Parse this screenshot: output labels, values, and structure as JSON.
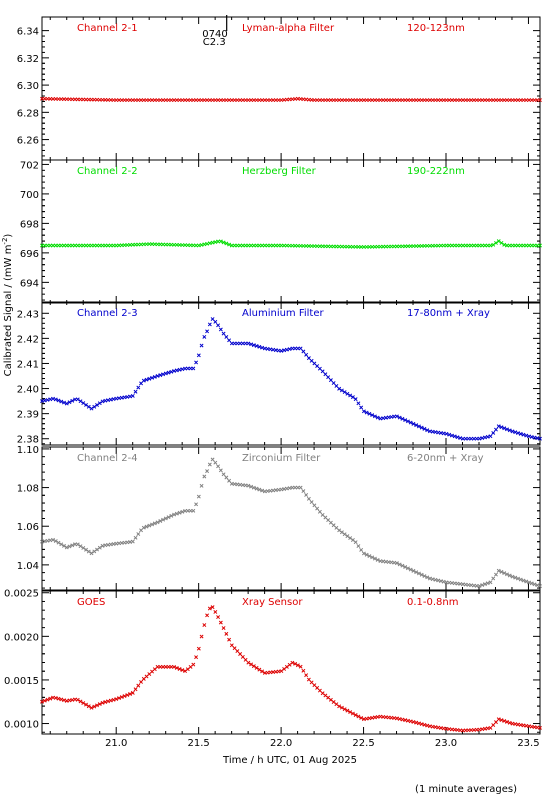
{
  "chart_data": {
    "type": "scatter",
    "ylabel": "Calibrated Signal / (mW m",
    "ylabel_sup": "-2",
    "ylabel_end": ")",
    "xlabel": "Time / h UTC, 01 Aug 2025",
    "footnote": "(1 minute averages)",
    "event_marker": {
      "x": 21.67,
      "label_top": "0740",
      "label_bottom": "C2.3"
    },
    "x_axis": {
      "range": [
        20.55,
        23.57
      ],
      "ticks": [
        21.0,
        21.5,
        22.0,
        22.5,
        23.0,
        23.5
      ],
      "tick_labels": [
        "21.0",
        "21.5",
        "22.0",
        "22.5",
        "23.0",
        "23.5"
      ]
    },
    "panels": [
      {
        "channel": "Channel 2-1",
        "filter": "Lyman-alpha Filter",
        "band": "120-123nm",
        "color": "#dd0000",
        "ylim": [
          6.245,
          6.35
        ],
        "yticks": [
          6.26,
          6.28,
          6.3,
          6.32,
          6.34
        ],
        "ytick_labels": [
          "6.26",
          "6.28",
          "6.30",
          "6.32",
          "6.34"
        ],
        "series": [
          [
            20.55,
            6.29
          ],
          [
            21.0,
            6.289
          ],
          [
            21.5,
            6.289
          ],
          [
            22.0,
            6.289
          ],
          [
            22.1,
            6.29
          ],
          [
            22.2,
            6.289
          ],
          [
            22.5,
            6.289
          ],
          [
            23.0,
            6.289
          ],
          [
            23.57,
            6.289
          ]
        ]
      },
      {
        "channel": "Channel 2-2",
        "filter": "Herzberg Filter",
        "band": "190-222nm",
        "color": "#00dd00",
        "ylim": [
          692.6,
          702.3
        ],
        "yticks": [
          694,
          696,
          698,
          700,
          702
        ],
        "ytick_labels": [
          "694",
          "696",
          "698",
          "700",
          "702"
        ],
        "series": [
          [
            20.55,
            696.5
          ],
          [
            21.0,
            696.5
          ],
          [
            21.2,
            696.6
          ],
          [
            21.5,
            696.5
          ],
          [
            21.63,
            696.8
          ],
          [
            21.7,
            696.5
          ],
          [
            22.0,
            696.5
          ],
          [
            22.5,
            696.4
          ],
          [
            23.0,
            696.5
          ],
          [
            23.28,
            696.5
          ],
          [
            23.32,
            696.8
          ],
          [
            23.36,
            696.5
          ],
          [
            23.57,
            696.5
          ]
        ]
      },
      {
        "channel": "Channel 2-3",
        "filter": "Aluminium Filter",
        "band": "17-80nm + Xray",
        "color": "#0000cc",
        "ylim": [
          2.3775,
          2.4345
        ],
        "yticks": [
          2.38,
          2.39,
          2.4,
          2.41,
          2.42,
          2.43
        ],
        "ytick_labels": [
          "2.38",
          "2.39",
          "2.40",
          "2.41",
          "2.42",
          "2.43"
        ],
        "series": [
          [
            20.55,
            2.395
          ],
          [
            20.62,
            2.396
          ],
          [
            20.7,
            2.394
          ],
          [
            20.76,
            2.396
          ],
          [
            20.85,
            2.392
          ],
          [
            20.92,
            2.395
          ],
          [
            21.0,
            2.396
          ],
          [
            21.1,
            2.397
          ],
          [
            21.16,
            2.403
          ],
          [
            21.25,
            2.405
          ],
          [
            21.35,
            2.407
          ],
          [
            21.42,
            2.408
          ],
          [
            21.47,
            2.408
          ],
          [
            21.5,
            2.413
          ],
          [
            21.53,
            2.42
          ],
          [
            21.56,
            2.424
          ],
          [
            21.58,
            2.428
          ],
          [
            21.61,
            2.426
          ],
          [
            21.65,
            2.422
          ],
          [
            21.7,
            2.418
          ],
          [
            21.8,
            2.418
          ],
          [
            21.9,
            2.416
          ],
          [
            22.0,
            2.415
          ],
          [
            22.07,
            2.416
          ],
          [
            22.12,
            2.416
          ],
          [
            22.17,
            2.412
          ],
          [
            22.25,
            2.407
          ],
          [
            22.35,
            2.4
          ],
          [
            22.45,
            2.396
          ],
          [
            22.5,
            2.391
          ],
          [
            22.6,
            2.388
          ],
          [
            22.7,
            2.389
          ],
          [
            22.8,
            2.386
          ],
          [
            22.9,
            2.383
          ],
          [
            23.0,
            2.382
          ],
          [
            23.1,
            2.38
          ],
          [
            23.2,
            2.38
          ],
          [
            23.27,
            2.381
          ],
          [
            23.32,
            2.385
          ],
          [
            23.4,
            2.383
          ],
          [
            23.5,
            2.381
          ],
          [
            23.57,
            2.38
          ]
        ]
      },
      {
        "channel": "Channel 2-4",
        "filter": "Zirconium Filter",
        "band": "6-20nm + Xray",
        "color": "#808080",
        "ylim": [
          1.027,
          1.101
        ],
        "yticks": [
          1.04,
          1.06,
          1.08,
          1.1
        ],
        "ytick_labels": [
          "1.04",
          "1.06",
          "1.08",
          "1.10"
        ],
        "series": [
          [
            20.55,
            1.052
          ],
          [
            20.62,
            1.053
          ],
          [
            20.7,
            1.049
          ],
          [
            20.76,
            1.051
          ],
          [
            20.85,
            1.046
          ],
          [
            20.92,
            1.05
          ],
          [
            21.0,
            1.051
          ],
          [
            21.1,
            1.052
          ],
          [
            21.16,
            1.059
          ],
          [
            21.25,
            1.062
          ],
          [
            21.35,
            1.066
          ],
          [
            21.42,
            1.068
          ],
          [
            21.47,
            1.068
          ],
          [
            21.5,
            1.075
          ],
          [
            21.53,
            1.085
          ],
          [
            21.56,
            1.09
          ],
          [
            21.58,
            1.095
          ],
          [
            21.61,
            1.092
          ],
          [
            21.65,
            1.087
          ],
          [
            21.7,
            1.082
          ],
          [
            21.8,
            1.081
          ],
          [
            21.9,
            1.078
          ],
          [
            22.0,
            1.079
          ],
          [
            22.07,
            1.08
          ],
          [
            22.12,
            1.08
          ],
          [
            22.17,
            1.074
          ],
          [
            22.25,
            1.066
          ],
          [
            22.35,
            1.058
          ],
          [
            22.45,
            1.052
          ],
          [
            22.5,
            1.046
          ],
          [
            22.6,
            1.042
          ],
          [
            22.7,
            1.041
          ],
          [
            22.8,
            1.037
          ],
          [
            22.9,
            1.033
          ],
          [
            23.0,
            1.031
          ],
          [
            23.1,
            1.03
          ],
          [
            23.2,
            1.029
          ],
          [
            23.27,
            1.031
          ],
          [
            23.32,
            1.037
          ],
          [
            23.4,
            1.034
          ],
          [
            23.5,
            1.031
          ],
          [
            23.57,
            1.029
          ]
        ]
      },
      {
        "channel": "GOES",
        "filter": "Xray Sensor",
        "band": "0.1-0.8nm",
        "color": "#dd0000",
        "ylim": [
          0.00088,
          0.00252
        ],
        "yticks": [
          0.001,
          0.0015,
          0.002,
          0.0025
        ],
        "ytick_labels": [
          "0.0010",
          "0.0015",
          "0.0020",
          "0.0025"
        ],
        "series": [
          [
            20.55,
            0.00125
          ],
          [
            20.62,
            0.0013
          ],
          [
            20.7,
            0.00126
          ],
          [
            20.76,
            0.00128
          ],
          [
            20.85,
            0.00118
          ],
          [
            20.92,
            0.00124
          ],
          [
            21.0,
            0.00128
          ],
          [
            21.1,
            0.00135
          ],
          [
            21.16,
            0.0015
          ],
          [
            21.25,
            0.00165
          ],
          [
            21.35,
            0.00165
          ],
          [
            21.42,
            0.0016
          ],
          [
            21.47,
            0.00168
          ],
          [
            21.5,
            0.00185
          ],
          [
            21.53,
            0.0021
          ],
          [
            21.56,
            0.0023
          ],
          [
            21.58,
            0.00235
          ],
          [
            21.61,
            0.00225
          ],
          [
            21.65,
            0.0021
          ],
          [
            21.7,
            0.0019
          ],
          [
            21.8,
            0.0017
          ],
          [
            21.9,
            0.00158
          ],
          [
            22.0,
            0.0016
          ],
          [
            22.07,
            0.0017
          ],
          [
            22.12,
            0.00165
          ],
          [
            22.17,
            0.0015
          ],
          [
            22.25,
            0.00135
          ],
          [
            22.35,
            0.0012
          ],
          [
            22.45,
            0.0011
          ],
          [
            22.5,
            0.00105
          ],
          [
            22.6,
            0.00108
          ],
          [
            22.7,
            0.00106
          ],
          [
            22.8,
            0.00102
          ],
          [
            22.9,
            0.00097
          ],
          [
            23.0,
            0.00094
          ],
          [
            23.1,
            0.00092
          ],
          [
            23.2,
            0.00093
          ],
          [
            23.27,
            0.00095
          ],
          [
            23.32,
            0.00105
          ],
          [
            23.4,
            0.001
          ],
          [
            23.5,
            0.00097
          ],
          [
            23.57,
            0.00095
          ]
        ]
      }
    ]
  }
}
